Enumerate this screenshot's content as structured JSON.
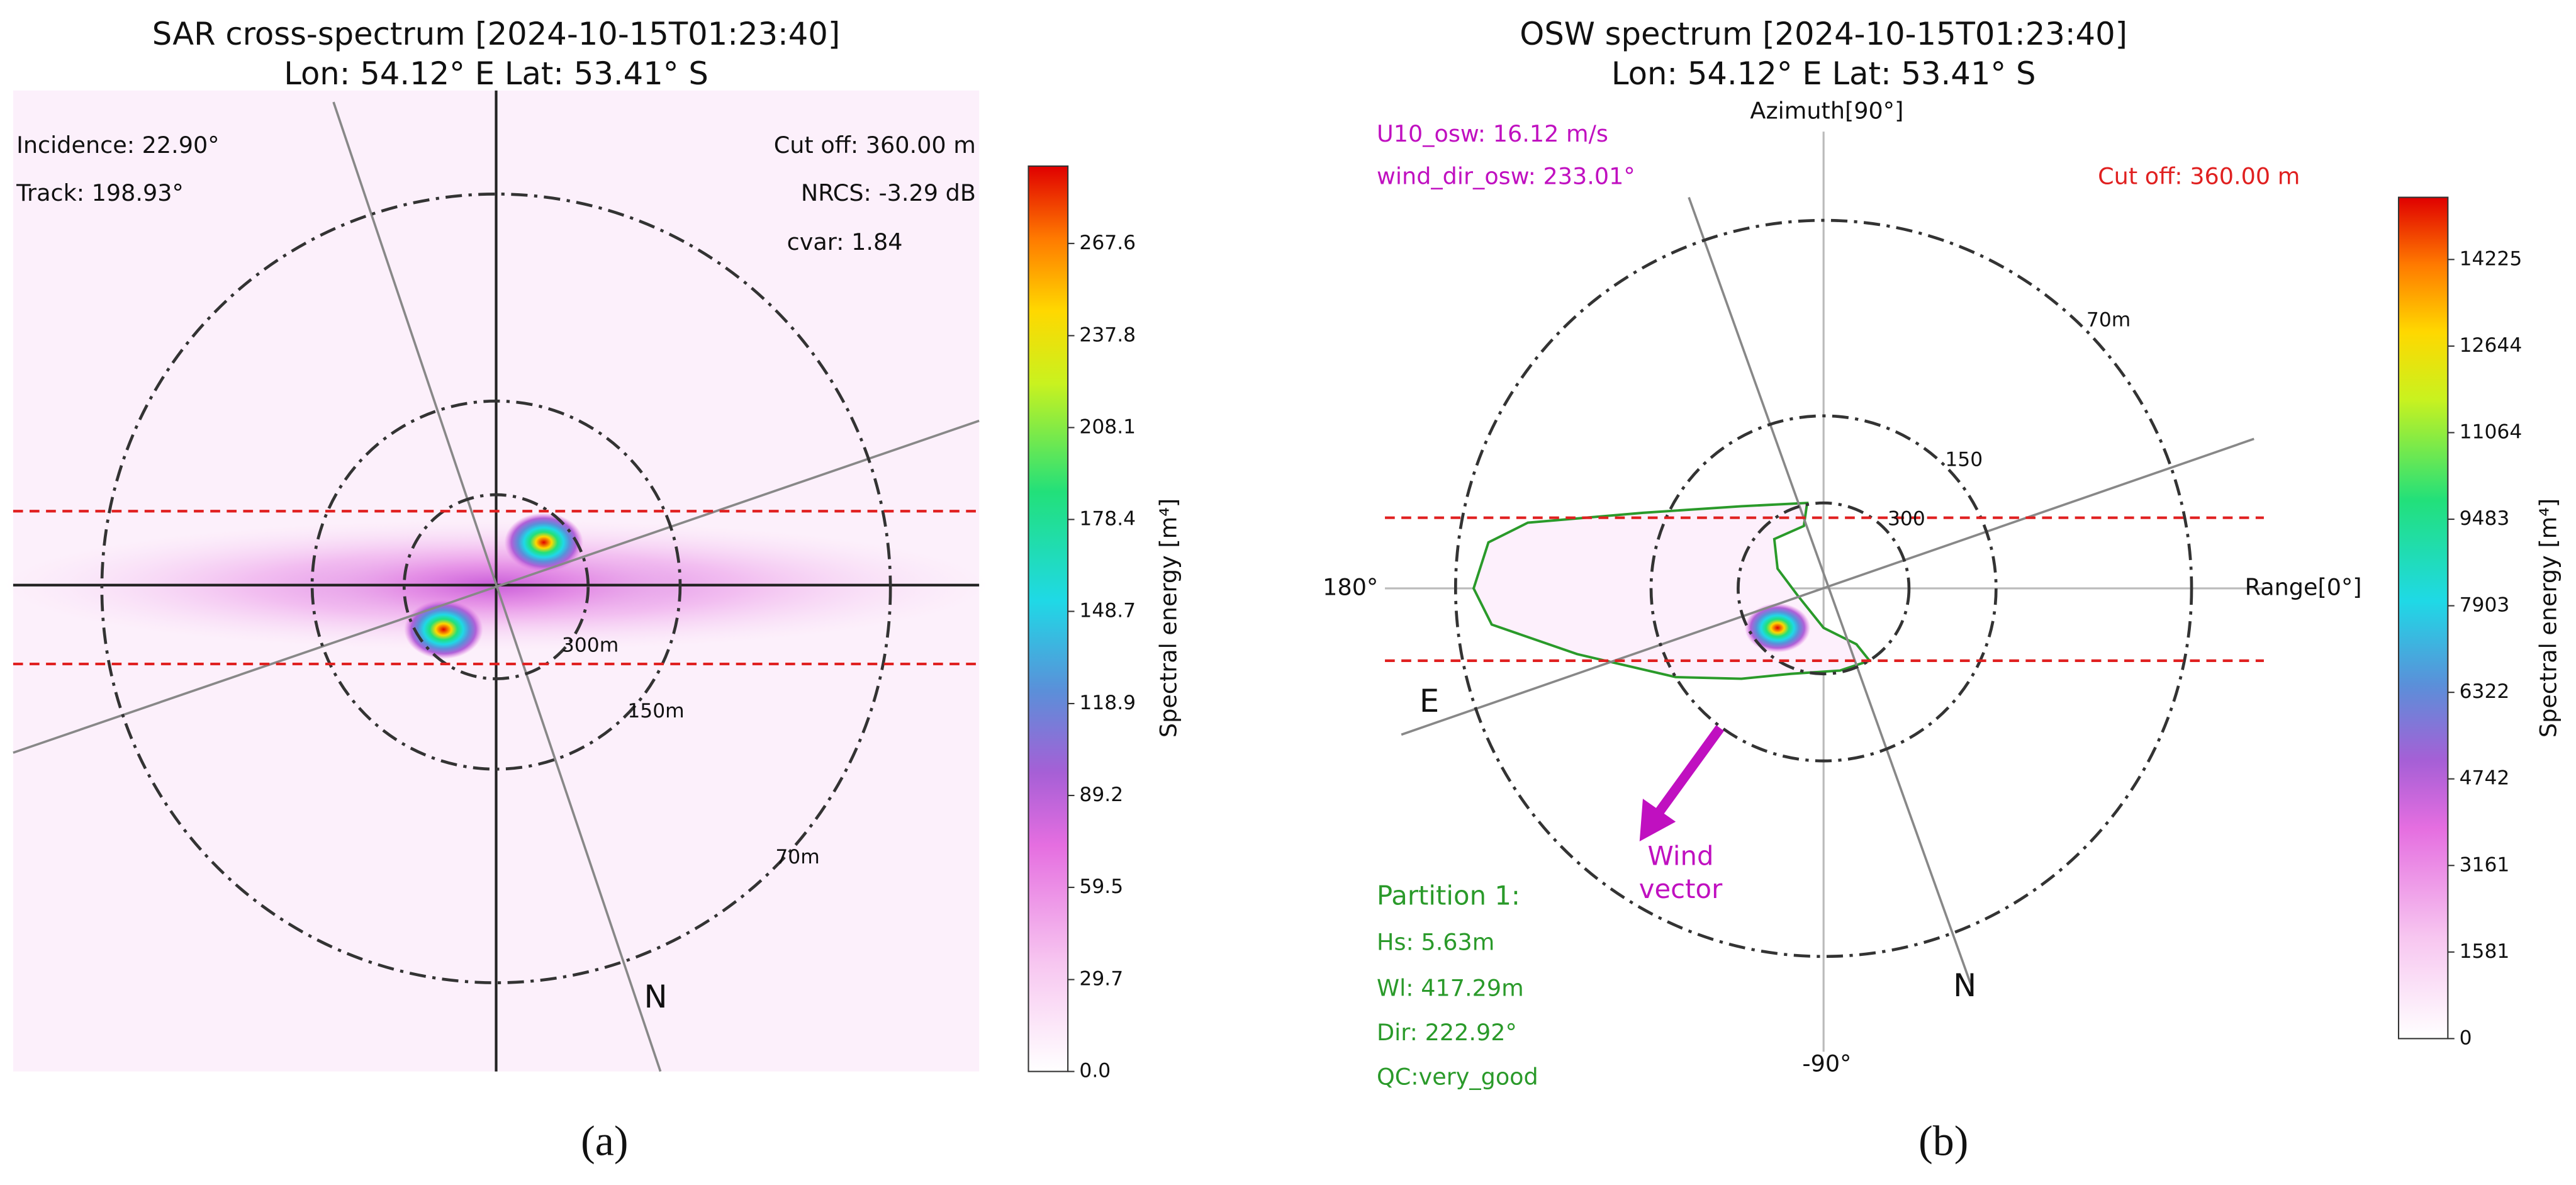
{
  "chart_data": [
    {
      "type": "polar-spectrum",
      "title": [
        "SAR cross-spectrum [2024-10-15T01:23:40]",
        "Lon: 54.12° E Lat: 53.41° S"
      ],
      "annotations": [
        "Incidence: 22.90°",
        "Track: 198.93°",
        "Cut off: 360.00 m",
        "NRCS: -3.29 dB",
        "cvar: 1.84"
      ],
      "ring_labels": [
        "300m",
        "150m",
        "70m"
      ],
      "direction_labels": [
        "N"
      ],
      "colorbar_label": "Spectral energy [m⁴]",
      "ylim": [
        0,
        292.6
      ],
      "yticks": [
        {
          "value": 0,
          "label": "0.0"
        },
        29.7,
        59.5,
        89.2,
        118.9,
        148.7,
        178.4,
        208.1,
        237.8,
        267.6
      ],
      "caption": "(a)"
    },
    {
      "type": "polar-spectrum",
      "title": [
        "OSW spectrum [2024-10-15T01:23:40]",
        "Lon: 54.12° E Lat: 53.41° S"
      ],
      "annotations": [
        "U10_osw: 16.12 m/s",
        "wind_dir_osw: 233.01°",
        "Cut off: 360.00 m",
        "Partition 1:",
        "Hs: 5.63m",
        "Wl: 417.29m",
        "Dir: 222.92°",
        "QC:very_good",
        "Wind",
        "vector"
      ],
      "ring_labels": [
        "70m",
        "150",
        "300"
      ],
      "direction_labels": [
        "Azimuth[90°]",
        "180°",
        "Range[0°]",
        "-90°",
        "E",
        "N"
      ],
      "colorbar_label": "Spectral energy [m⁴]",
      "ylim": [
        0,
        15360
      ],
      "yticks": [
        0,
        1581,
        3161,
        4742,
        6322,
        7903,
        9483,
        11064,
        12644,
        14225
      ],
      "caption": "(b)"
    }
  ]
}
